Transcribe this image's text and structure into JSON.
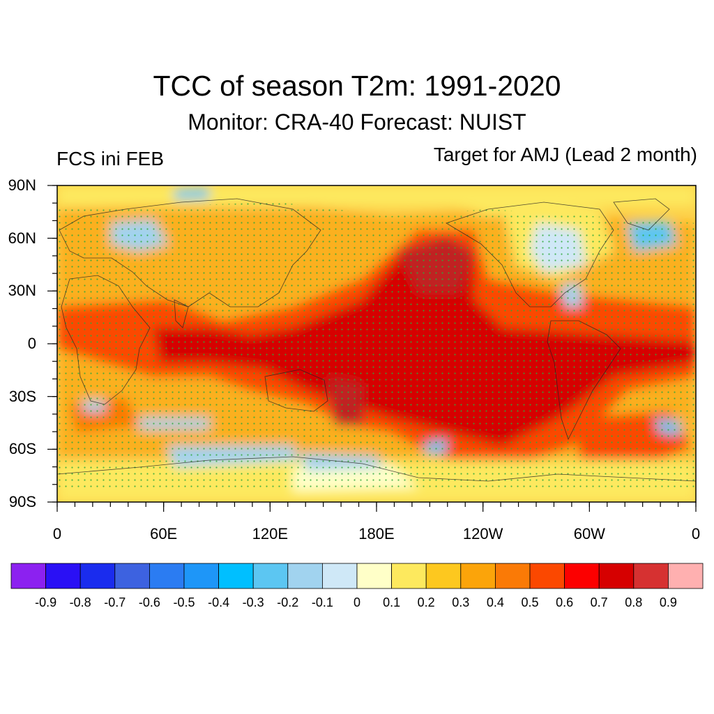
{
  "title": "TCC of season T2m: 1991-2020",
  "subtitle": "Monitor: CRA-40   Forecast: NUIST",
  "left_label": "FCS ini FEB",
  "right_label": "Target for AMJ (Lead 2 month)",
  "lat_labels": [
    "90N",
    "60N",
    "30N",
    "0",
    "30S",
    "60S",
    "90S"
  ],
  "lon_labels": [
    "0",
    "60E",
    "120E",
    "180E",
    "120W",
    "60W",
    "0"
  ],
  "colorbar": {
    "colors": [
      "#8c21f0",
      "#2a10f5",
      "#1a2cee",
      "#3d62e0",
      "#2b7cf2",
      "#1e96f8",
      "#00bfff",
      "#5cc6f2",
      "#a1d3ef",
      "#cfe8f7",
      "#ffffc8",
      "#fde95e",
      "#fdc81f",
      "#fba40a",
      "#fa7a06",
      "#fb4800",
      "#fc0000",
      "#d60000",
      "#d63131",
      "#ffb0b0"
    ],
    "labels": [
      "-0.9",
      "-0.8",
      "-0.7",
      "-0.6",
      "-0.5",
      "-0.4",
      "-0.3",
      "-0.2",
      "-0.1",
      "0",
      "0.1",
      "0.2",
      "0.3",
      "0.4",
      "0.5",
      "0.6",
      "0.7",
      "0.8",
      "0.9"
    ]
  }
}
